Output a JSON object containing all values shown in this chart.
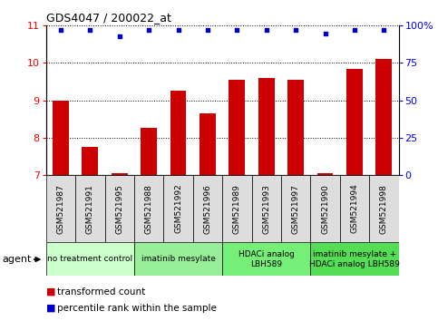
{
  "title": "GDS4047 / 200022_at",
  "samples": [
    "GSM521987",
    "GSM521991",
    "GSM521995",
    "GSM521988",
    "GSM521992",
    "GSM521996",
    "GSM521989",
    "GSM521993",
    "GSM521997",
    "GSM521990",
    "GSM521994",
    "GSM521998"
  ],
  "bar_values": [
    9.0,
    7.75,
    7.05,
    8.25,
    9.25,
    8.65,
    9.55,
    9.6,
    9.55,
    7.05,
    9.85,
    10.1
  ],
  "percentile_values": [
    97,
    97,
    93,
    97,
    97,
    97,
    97,
    97,
    97,
    95,
    97,
    97
  ],
  "bar_color": "#cc0000",
  "dot_color": "#0000cc",
  "ylim_left": [
    7,
    11
  ],
  "ylim_right": [
    0,
    100
  ],
  "yticks_left": [
    7,
    8,
    9,
    10,
    11
  ],
  "yticks_right": [
    0,
    25,
    50,
    75,
    100
  ],
  "agent_groups": [
    {
      "label": "no treatment control",
      "start": 0,
      "end": 3,
      "color": "#ccffcc"
    },
    {
      "label": "imatinib mesylate",
      "start": 3,
      "end": 6,
      "color": "#99ee99"
    },
    {
      "label": "HDACi analog\nLBH589",
      "start": 6,
      "end": 9,
      "color": "#77ee77"
    },
    {
      "label": "imatinib mesylate +\nHDACi analog LBH589",
      "start": 9,
      "end": 12,
      "color": "#55dd55"
    }
  ],
  "legend_items": [
    {
      "label": "transformed count",
      "color": "#cc0000"
    },
    {
      "label": "percentile rank within the sample",
      "color": "#0000cc"
    }
  ],
  "agent_label": "agent",
  "bar_width": 0.55,
  "sample_box_color": "#dddddd",
  "spine_color": "#000000"
}
